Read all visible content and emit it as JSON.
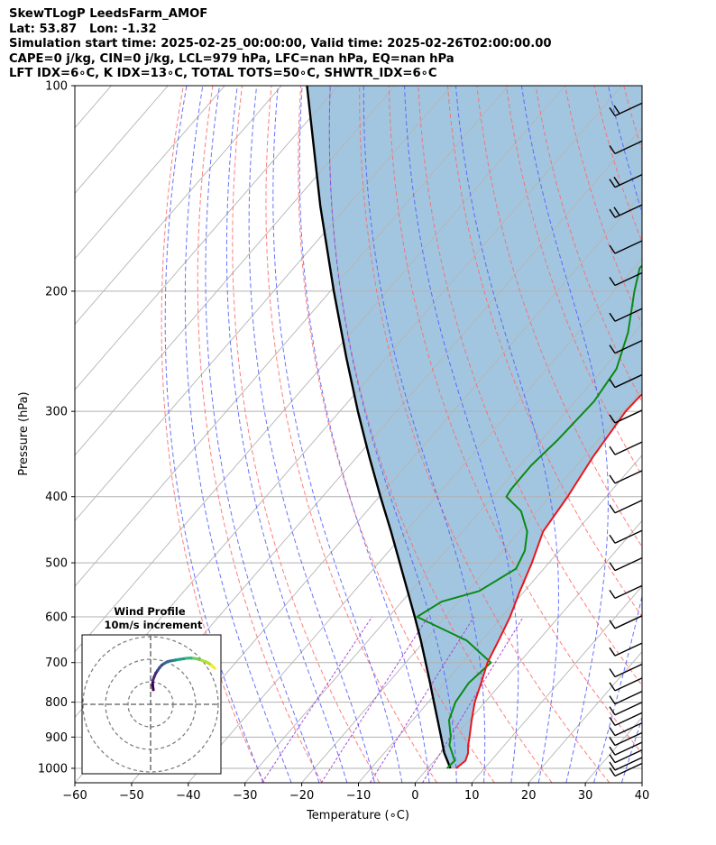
{
  "header": {
    "title": "SkewTLogP LeedsFarm_AMOF",
    "location": "Lat: 53.87   Lon: -1.32",
    "times": "Simulation start time: 2025-02-25_00:00:00, Valid time: 2025-02-26T02:00:00.00",
    "parcel_indices": "CAPE=0 j/kg, CIN=0 j/kg, LCL=979 hPa, LFC=nan hPa, EQ=nan hPa",
    "stability_indices": "LFT IDX=6∘C, K IDX=13∘C, TOTAL TOTS=50∘C, SHWTR_IDX=6∘C"
  },
  "chart_data": [
    {
      "type": "line",
      "subtype": "skew-t log-p",
      "xlabel": "Temperature (∘C)",
      "ylabel": "Pressure (hPa)",
      "xlim": [
        -60,
        40
      ],
      "ylim": [
        1050,
        100
      ],
      "y_scale": "log",
      "xticks": [
        "−60",
        "−50",
        "−40",
        "−30",
        "−20",
        "−10",
        "0",
        "10",
        "20",
        "30",
        "40"
      ],
      "yticks": [
        "100",
        "200",
        "300",
        "400",
        "500",
        "600",
        "700",
        "800",
        "900",
        "1000"
      ],
      "grid": true,
      "colors": {
        "temperature": "#e8161b",
        "dewpoint": "#0a8a16",
        "parcel": "#000000",
        "shading": "#a3c6e0",
        "dry_adiabats": "#ff6666",
        "moist_adiabats": "#4d5bff",
        "isotherms": "#b4b4b4",
        "mixing_ratio": "#9e3bd6"
      },
      "series": [
        {
          "key": "temperature",
          "pressure": [
            1000,
            975,
            950,
            925,
            900,
            850,
            800,
            750,
            700,
            650,
            600,
            550,
            500,
            450,
            400,
            350,
            300,
            285,
            265,
            250,
            230,
            210,
            200,
            185,
            170,
            150,
            130,
            115,
            100
          ],
          "values": [
            5.0,
            5.5,
            4.8,
            3.6,
            2.6,
            0.4,
            -1.8,
            -3.6,
            -5.6,
            -7.0,
            -8.6,
            -10.8,
            -13.0,
            -15.8,
            -16.8,
            -18.4,
            -19.6,
            -19.4,
            -18.0,
            -15.5,
            -12.0,
            -7.7,
            -5.0,
            -3.3,
            -2.5,
            -0.9,
            1.0,
            3.0,
            4.3
          ]
        },
        {
          "key": "dewpoint",
          "pressure": [
            1000,
            975,
            950,
            925,
            900,
            850,
            800,
            750,
            700,
            650,
            600,
            570,
            550,
            510,
            480,
            450,
            420,
            400,
            390,
            360,
            330,
            290,
            260,
            230,
            200,
            185,
            150,
            100
          ],
          "values": [
            3.4,
            3.6,
            2.0,
            0.3,
            -0.7,
            -3.6,
            -5.2,
            -5.8,
            -5.0,
            -12.6,
            -25.0,
            -23.0,
            -18.0,
            -14.9,
            -16.1,
            -18.6,
            -22.8,
            -27.6,
            -27.9,
            -28.0,
            -27.2,
            -26.7,
            -27.7,
            -31.2,
            -36.4,
            -39.0,
            -37.4,
            -32.2
          ]
        },
        {
          "key": "parcel",
          "pressure": [
            1000,
            979,
            950,
            900,
            850,
            800,
            750,
            700,
            650,
            600,
            550,
            500,
            450,
            400,
            350,
            300,
            250,
            200,
            150,
            100
          ],
          "values": [
            4.0,
            2.6,
            0.6,
            -2.4,
            -5.6,
            -9.0,
            -12.6,
            -16.5,
            -20.7,
            -25.4,
            -30.6,
            -36.3,
            -42.6,
            -49.8,
            -57.8,
            -66.8,
            -77.1,
            -89.4,
            -104.8,
            -125.5
          ]
        }
      ],
      "wind_barbs": {
        "pressure": [
          1020,
          1000,
          975,
          950,
          920,
          890,
          860,
          830,
          800,
          765,
          730,
          680,
          620,
          560,
          510,
          465,
          420,
          380,
          345,
          310,
          275,
          245,
          220,
          195,
          175,
          155,
          140,
          125,
          110
        ],
        "barbs": [
          1,
          1,
          1,
          1,
          1,
          1,
          1,
          1,
          1,
          1,
          1,
          1,
          1,
          1,
          1,
          1,
          1,
          1,
          1,
          1,
          1,
          1,
          1,
          1,
          1,
          2,
          2,
          1,
          2
        ]
      }
    },
    {
      "type": "scatter",
      "subtype": "hodograph",
      "title": "Wind Profile",
      "subtitle": "10m/s increment",
      "rings": 3,
      "colormap": "viridis",
      "u": [
        1.2,
        0.9,
        1.0,
        1.6,
        2.3,
        3.1,
        4.0,
        5.0,
        6.2,
        7.5,
        8.6,
        9.8,
        10.9,
        12.0,
        13.1,
        14.6,
        15.8,
        17.0,
        18.0,
        19.2,
        20.5,
        21.6,
        22.7,
        24.2,
        25.8,
        27.1,
        28.4
      ],
      "v": [
        6.5,
        8.4,
        10.5,
        12.2,
        13.8,
        15.0,
        16.3,
        17.4,
        18.2,
        18.9,
        19.2,
        19.4,
        19.6,
        19.8,
        20.0,
        20.2,
        20.4,
        20.5,
        20.5,
        20.4,
        20.2,
        19.9,
        19.5,
        19.0,
        18.2,
        17.2,
        16.0
      ]
    }
  ]
}
